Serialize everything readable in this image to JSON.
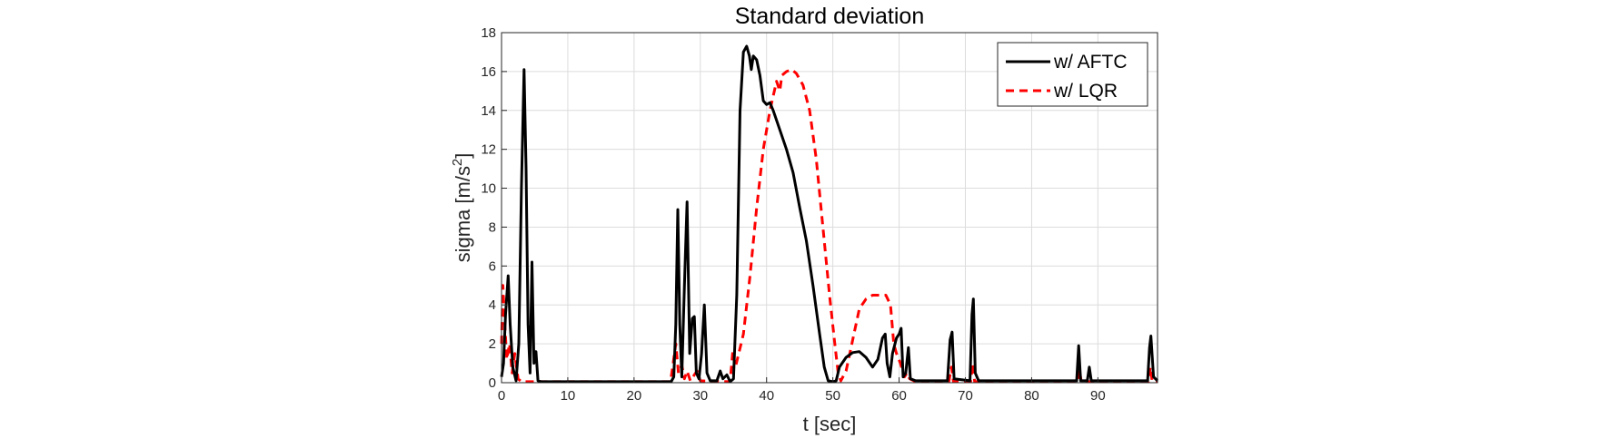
{
  "chart_data": {
    "type": "line",
    "title": "Standard deviation",
    "xlabel": "t [sec]",
    "ylabel_base": "sigma [m/s",
    "ylabel_sup": "2",
    "ylabel_tail": "]",
    "xlim": [
      0,
      99
    ],
    "ylim": [
      0,
      18
    ],
    "xticks": [
      0,
      10,
      20,
      30,
      40,
      50,
      60,
      70,
      80,
      90
    ],
    "yticks": [
      0,
      2,
      4,
      6,
      8,
      10,
      12,
      14,
      16,
      18
    ],
    "grid": true,
    "legend_position": "top-right",
    "series": [
      {
        "name": "w/ AFTC",
        "color": "#000000",
        "style": "solid",
        "points": [
          [
            0,
            0.3
          ],
          [
            0.3,
            1.0
          ],
          [
            0.6,
            3.5
          ],
          [
            1.0,
            5.5
          ],
          [
            1.3,
            3.0
          ],
          [
            1.7,
            0.8
          ],
          [
            2.2,
            0.1
          ],
          [
            2.6,
            2.0
          ],
          [
            3.0,
            10.0
          ],
          [
            3.4,
            16.1
          ],
          [
            3.7,
            11.0
          ],
          [
            4.0,
            3.0
          ],
          [
            4.3,
            0.5
          ],
          [
            4.6,
            6.2
          ],
          [
            4.9,
            1.0
          ],
          [
            5.2,
            1.6
          ],
          [
            5.5,
            0.1
          ],
          [
            6,
            0.05
          ],
          [
            25.6,
            0.05
          ],
          [
            26.0,
            0.3
          ],
          [
            26.3,
            3.0
          ],
          [
            26.6,
            8.9
          ],
          [
            26.9,
            3.0
          ],
          [
            27.2,
            0.3
          ],
          [
            27.6,
            5.0
          ],
          [
            28.0,
            9.3
          ],
          [
            28.4,
            1.5
          ],
          [
            28.8,
            3.3
          ],
          [
            29.1,
            3.4
          ],
          [
            29.4,
            0.5
          ],
          [
            29.8,
            0.2
          ],
          [
            30.2,
            1.5
          ],
          [
            30.6,
            4.0
          ],
          [
            31.0,
            0.5
          ],
          [
            31.5,
            0.1
          ],
          [
            32.5,
            0.1
          ],
          [
            33.0,
            0.6
          ],
          [
            33.4,
            0.2
          ],
          [
            34.0,
            0.4
          ],
          [
            34.5,
            0.05
          ],
          [
            35.0,
            0.2
          ],
          [
            35.5,
            4.5
          ],
          [
            36.0,
            14.0
          ],
          [
            36.5,
            17.0
          ],
          [
            37.0,
            17.3
          ],
          [
            37.4,
            16.8
          ],
          [
            37.7,
            16.1
          ],
          [
            38.0,
            16.8
          ],
          [
            38.5,
            16.6
          ],
          [
            39.0,
            15.8
          ],
          [
            39.5,
            14.5
          ],
          [
            40.0,
            14.3
          ],
          [
            40.5,
            14.4
          ],
          [
            41.0,
            14.0
          ],
          [
            42.0,
            13.0
          ],
          [
            43.0,
            12.0
          ],
          [
            44.0,
            10.8
          ],
          [
            45.0,
            9.0
          ],
          [
            46.0,
            7.3
          ],
          [
            47.0,
            5.0
          ],
          [
            48.0,
            2.5
          ],
          [
            48.7,
            0.8
          ],
          [
            49.3,
            0.1
          ],
          [
            50.0,
            0.05
          ],
          [
            50.5,
            0.1
          ],
          [
            51.0,
            0.8
          ],
          [
            52.0,
            1.3
          ],
          [
            53.0,
            1.55
          ],
          [
            54.0,
            1.6
          ],
          [
            55.0,
            1.3
          ],
          [
            56.0,
            0.8
          ],
          [
            56.8,
            1.2
          ],
          [
            57.5,
            2.3
          ],
          [
            57.9,
            2.5
          ],
          [
            58.2,
            1.0
          ],
          [
            58.6,
            0.3
          ],
          [
            59.0,
            1.5
          ],
          [
            59.6,
            2.3
          ],
          [
            60.0,
            2.5
          ],
          [
            60.3,
            2.8
          ],
          [
            60.6,
            0.3
          ],
          [
            61.0,
            0.5
          ],
          [
            61.4,
            1.8
          ],
          [
            61.7,
            0.2
          ],
          [
            62.5,
            0.1
          ],
          [
            67.3,
            0.1
          ],
          [
            67.7,
            2.2
          ],
          [
            68.0,
            2.6
          ],
          [
            68.3,
            0.2
          ],
          [
            70.7,
            0.1
          ],
          [
            71.0,
            3.5
          ],
          [
            71.2,
            4.3
          ],
          [
            71.5,
            0.5
          ],
          [
            72.0,
            0.1
          ],
          [
            86.8,
            0.1
          ],
          [
            87.1,
            1.9
          ],
          [
            87.4,
            0.1
          ],
          [
            88.4,
            0.1
          ],
          [
            88.7,
            0.8
          ],
          [
            89.0,
            0.1
          ],
          [
            97.5,
            0.1
          ],
          [
            97.8,
            1.8
          ],
          [
            98.0,
            2.4
          ],
          [
            98.4,
            0.3
          ],
          [
            99.0,
            0.1
          ]
        ]
      },
      {
        "name": "w/ LQR",
        "color": "#ff0000",
        "style": "dashed",
        "points": [
          [
            0,
            2.0
          ],
          [
            0.2,
            5.0
          ],
          [
            0.5,
            3.0
          ],
          [
            0.8,
            1.2
          ],
          [
            1.2,
            2.0
          ],
          [
            1.6,
            0.5
          ],
          [
            2.0,
            1.5
          ],
          [
            2.5,
            0.2
          ],
          [
            3.0,
            0.05
          ],
          [
            25.5,
            0.05
          ],
          [
            25.9,
            1.0
          ],
          [
            26.3,
            2.0
          ],
          [
            26.7,
            0.5
          ],
          [
            27.2,
            0.9
          ],
          [
            27.6,
            0.2
          ],
          [
            28.0,
            0.6
          ],
          [
            28.5,
            0.1
          ],
          [
            29.5,
            0.6
          ],
          [
            30.0,
            0.1
          ],
          [
            34.5,
            0.05
          ],
          [
            34.9,
            1.6
          ],
          [
            35.3,
            0.8
          ],
          [
            35.8,
            1.5
          ],
          [
            36.5,
            2.5
          ],
          [
            37.5,
            5.5
          ],
          [
            38.5,
            9.0
          ],
          [
            39.5,
            12.0
          ],
          [
            40.5,
            14.0
          ],
          [
            41.5,
            15.5
          ],
          [
            42.0,
            15.0
          ],
          [
            42.3,
            15.8
          ],
          [
            43.0,
            16.0
          ],
          [
            43.8,
            16.1
          ],
          [
            44.5,
            15.9
          ],
          [
            45.5,
            15.3
          ],
          [
            46.5,
            14.0
          ],
          [
            47.5,
            11.5
          ],
          [
            48.5,
            8.0
          ],
          [
            49.5,
            4.5
          ],
          [
            50.3,
            2.0
          ],
          [
            50.8,
            0.5
          ],
          [
            51.2,
            0.1
          ],
          [
            52.0,
            0.6
          ],
          [
            53.0,
            2.2
          ],
          [
            54.0,
            3.8
          ],
          [
            55.0,
            4.3
          ],
          [
            56.0,
            4.5
          ],
          [
            57.0,
            4.5
          ],
          [
            58.0,
            4.5
          ],
          [
            58.7,
            4.0
          ],
          [
            59.2,
            2.0
          ],
          [
            59.6,
            1.5
          ],
          [
            60.2,
            1.0
          ],
          [
            60.8,
            0.3
          ],
          [
            61.2,
            0.5
          ],
          [
            61.6,
            0.2
          ],
          [
            62.5,
            0.05
          ],
          [
            67.5,
            0.05
          ],
          [
            67.9,
            0.8
          ],
          [
            68.2,
            0.05
          ],
          [
            70.8,
            0.05
          ],
          [
            71.1,
            1.0
          ],
          [
            71.4,
            0.05
          ],
          [
            87.0,
            0.05
          ],
          [
            87.2,
            0.7
          ],
          [
            87.5,
            0.05
          ],
          [
            89.0,
            0.05
          ],
          [
            97.6,
            0.05
          ],
          [
            97.9,
            0.8
          ],
          [
            98.2,
            0.05
          ],
          [
            99.0,
            0.1
          ]
        ]
      }
    ]
  }
}
